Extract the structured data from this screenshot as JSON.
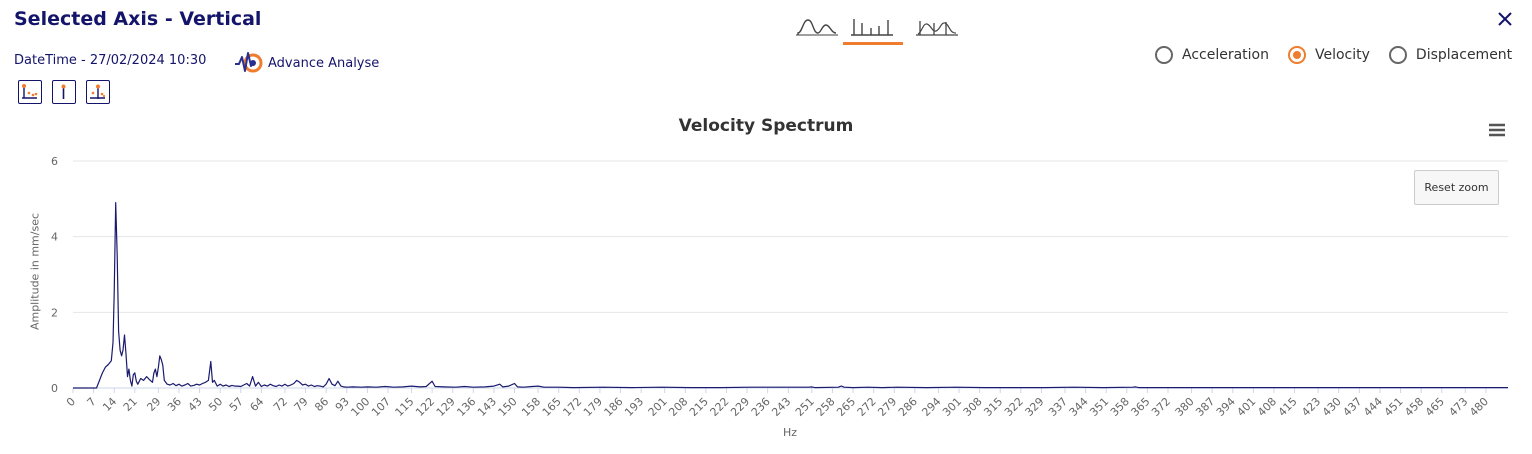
{
  "header": {
    "title": "Selected Axis - Vertical",
    "datetime": "DateTime - 27/02/2024 10:30",
    "advance_label": "Advance Analyse"
  },
  "view_tabs": [
    {
      "icon": "waveform-icon",
      "active": false
    },
    {
      "icon": "spectrum-icon",
      "active": true
    },
    {
      "icon": "overlay-icon",
      "active": false
    }
  ],
  "tools": [
    {
      "icon": "marker-peaks-icon"
    },
    {
      "icon": "single-cursor-icon"
    },
    {
      "icon": "harmonic-cursor-icon"
    }
  ],
  "radio": {
    "options": [
      "Acceleration",
      "Velocity",
      "Displacement"
    ],
    "selected": "Velocity"
  },
  "colors": {
    "accent": "#f07c2e",
    "navy": "#14146b",
    "series": "#1a1a6e"
  },
  "chart_controls": {
    "reset_zoom": "Reset zoom",
    "menu_icon": "hamburger-menu-icon"
  },
  "chart_data": {
    "type": "line",
    "title": "Velocity Spectrum",
    "xlabel": "Hz",
    "ylabel": "Amplitude in mm/sec",
    "xlim": [
      0,
      487.5
    ],
    "ylim": [
      0,
      6
    ],
    "yticks": [
      0,
      2,
      4,
      6
    ],
    "grid": true,
    "xticks": [
      0,
      7,
      14,
      21,
      29,
      36,
      43,
      50,
      57,
      64,
      72,
      79,
      86,
      93,
      100,
      107,
      115,
      122,
      129,
      136,
      143,
      150,
      158,
      165,
      172,
      179,
      186,
      193,
      201,
      208,
      215,
      222,
      229,
      236,
      243,
      251,
      258,
      265,
      272,
      279,
      286,
      294,
      301,
      308,
      315,
      322,
      329,
      337,
      344,
      351,
      358,
      365,
      372,
      380,
      387,
      394,
      401,
      408,
      415,
      423,
      430,
      437,
      444,
      451,
      458,
      465,
      473,
      480
    ],
    "series": [
      {
        "points": [
          [
            0,
            0
          ],
          [
            8,
            0
          ],
          [
            9,
            0.2
          ],
          [
            10,
            0.4
          ],
          [
            11,
            0.55
          ],
          [
            12,
            0.62
          ],
          [
            13,
            0.72
          ],
          [
            13.6,
            1.2
          ],
          [
            14,
            2.5
          ],
          [
            14.5,
            4.9
          ],
          [
            15,
            3.5
          ],
          [
            15.5,
            1.5
          ],
          [
            16,
            1.0
          ],
          [
            16.5,
            0.85
          ],
          [
            17,
            1.0
          ],
          [
            17.5,
            1.4
          ],
          [
            18,
            0.9
          ],
          [
            18.5,
            0.3
          ],
          [
            19,
            0.5
          ],
          [
            19.5,
            0.2
          ],
          [
            20,
            0.05
          ],
          [
            20.5,
            0.35
          ],
          [
            21,
            0.4
          ],
          [
            21.5,
            0.18
          ],
          [
            22,
            0.1
          ],
          [
            23,
            0.25
          ],
          [
            24,
            0.2
          ],
          [
            25,
            0.3
          ],
          [
            26,
            0.22
          ],
          [
            27,
            0.15
          ],
          [
            27.5,
            0.4
          ],
          [
            28,
            0.5
          ],
          [
            28.5,
            0.3
          ],
          [
            29,
            0.55
          ],
          [
            29.5,
            0.85
          ],
          [
            30,
            0.75
          ],
          [
            30.5,
            0.6
          ],
          [
            31,
            0.2
          ],
          [
            32,
            0.1
          ],
          [
            33,
            0.08
          ],
          [
            34,
            0.12
          ],
          [
            35,
            0.06
          ],
          [
            36,
            0.1
          ],
          [
            37,
            0.05
          ],
          [
            38,
            0.08
          ],
          [
            39,
            0.12
          ],
          [
            40,
            0.05
          ],
          [
            41,
            0.07
          ],
          [
            42,
            0.1
          ],
          [
            43,
            0.08
          ],
          [
            44,
            0.12
          ],
          [
            45,
            0.15
          ],
          [
            46,
            0.2
          ],
          [
            46.8,
            0.7
          ],
          [
            47.4,
            0.15
          ],
          [
            48,
            0.2
          ],
          [
            49,
            0.05
          ],
          [
            50,
            0.1
          ],
          [
            51,
            0.05
          ],
          [
            52,
            0.08
          ],
          [
            53,
            0.04
          ],
          [
            54,
            0.07
          ],
          [
            55,
            0.05
          ],
          [
            56,
            0.05
          ],
          [
            57,
            0.04
          ],
          [
            58,
            0.08
          ],
          [
            59,
            0.12
          ],
          [
            60,
            0.05
          ],
          [
            61,
            0.3
          ],
          [
            62,
            0.05
          ],
          [
            63,
            0.15
          ],
          [
            64,
            0.04
          ],
          [
            65,
            0.08
          ],
          [
            66,
            0.05
          ],
          [
            67,
            0.1
          ],
          [
            68,
            0.06
          ],
          [
            69,
            0.04
          ],
          [
            70,
            0.08
          ],
          [
            71,
            0.05
          ],
          [
            72,
            0.1
          ],
          [
            73,
            0.05
          ],
          [
            74,
            0.08
          ],
          [
            75,
            0.12
          ],
          [
            76,
            0.2
          ],
          [
            77,
            0.15
          ],
          [
            78,
            0.08
          ],
          [
            79,
            0.1
          ],
          [
            80,
            0.05
          ],
          [
            81,
            0.08
          ],
          [
            82,
            0.04
          ],
          [
            83,
            0.06
          ],
          [
            84,
            0.05
          ],
          [
            85,
            0.03
          ],
          [
            86,
            0.1
          ],
          [
            87,
            0.25
          ],
          [
            88,
            0.1
          ],
          [
            89,
            0.06
          ],
          [
            90,
            0.18
          ],
          [
            91,
            0.05
          ],
          [
            92,
            0.03
          ],
          [
            93,
            0.02
          ],
          [
            95,
            0.03
          ],
          [
            98,
            0.02
          ],
          [
            100,
            0.03
          ],
          [
            103,
            0.02
          ],
          [
            106,
            0.04
          ],
          [
            109,
            0.02
          ],
          [
            112,
            0.03
          ],
          [
            115,
            0.05
          ],
          [
            118,
            0.03
          ],
          [
            120,
            0.04
          ],
          [
            122,
            0.18
          ],
          [
            123,
            0.04
          ],
          [
            126,
            0.03
          ],
          [
            130,
            0.02
          ],
          [
            133,
            0.04
          ],
          [
            136,
            0.02
          ],
          [
            140,
            0.03
          ],
          [
            143,
            0.05
          ],
          [
            145,
            0.1
          ],
          [
            146,
            0.03
          ],
          [
            148,
            0.05
          ],
          [
            150,
            0.12
          ],
          [
            151,
            0.03
          ],
          [
            153,
            0.02
          ],
          [
            156,
            0.04
          ],
          [
            158,
            0.05
          ],
          [
            160,
            0.02
          ],
          [
            165,
            0.02
          ],
          [
            170,
            0.01
          ],
          [
            180,
            0.02
          ],
          [
            190,
            0.01
          ],
          [
            200,
            0.02
          ],
          [
            210,
            0.01
          ],
          [
            220,
            0.01
          ],
          [
            230,
            0.02
          ],
          [
            240,
            0.02
          ],
          [
            250,
            0.02
          ],
          [
            251,
            0.03
          ],
          [
            252,
            0.01
          ],
          [
            260,
            0.02
          ],
          [
            261,
            0.05
          ],
          [
            262,
            0.02
          ],
          [
            265,
            0.01
          ],
          [
            270,
            0.02
          ],
          [
            275,
            0.01
          ],
          [
            280,
            0.02
          ],
          [
            290,
            0.01
          ],
          [
            300,
            0.02
          ],
          [
            310,
            0.01
          ],
          [
            320,
            0.01
          ],
          [
            330,
            0.01
          ],
          [
            340,
            0.02
          ],
          [
            350,
            0.01
          ],
          [
            360,
            0.02
          ],
          [
            361,
            0.03
          ],
          [
            362,
            0.01
          ],
          [
            370,
            0.01
          ],
          [
            380,
            0.01
          ],
          [
            390,
            0.01
          ],
          [
            400,
            0.01
          ],
          [
            410,
            0.01
          ],
          [
            420,
            0.01
          ],
          [
            430,
            0.01
          ],
          [
            440,
            0.01
          ],
          [
            450,
            0.01
          ],
          [
            460,
            0.01
          ],
          [
            470,
            0.01
          ],
          [
            480,
            0.01
          ],
          [
            487.5,
            0.01
          ]
        ]
      }
    ]
  }
}
